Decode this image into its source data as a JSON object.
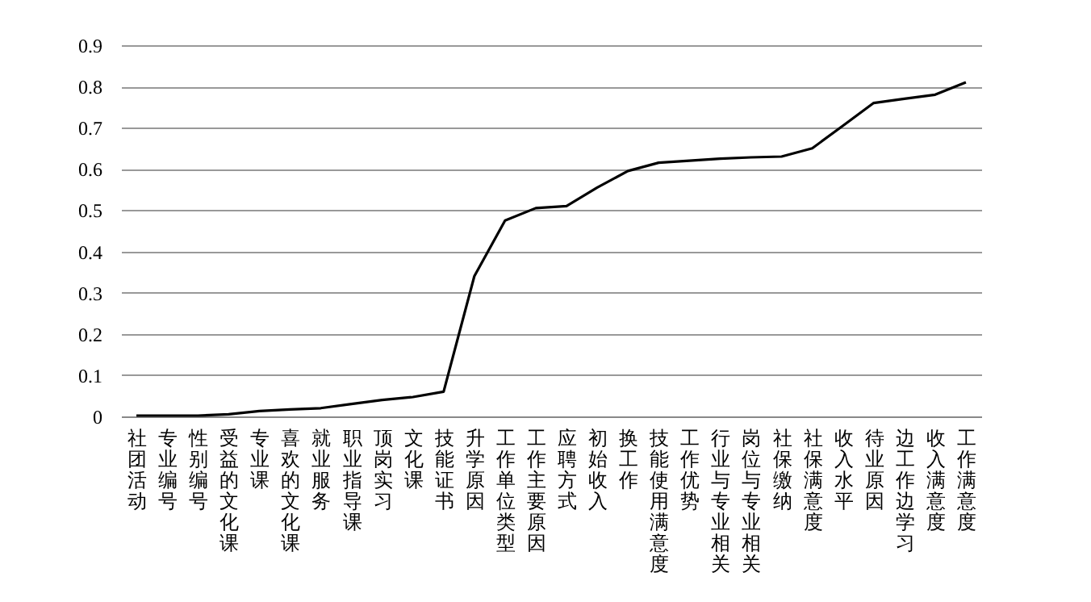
{
  "chart_data": {
    "type": "line",
    "categories": [
      "社团活动",
      "专业编号",
      "性别编号",
      "受益的文化课",
      "专业课",
      "喜欢的文化课",
      "就业服务",
      "职业指导课",
      "顶岗实习",
      "文化课",
      "技能证书",
      "升学原因",
      "工作单位类型",
      "工作主要原因",
      "应聘方式",
      "初始收入",
      "换工作",
      "技能使用满意度",
      "工作优势",
      "行业与专业相关",
      "岗位与专业相关",
      "社保缴纳",
      "社保满意度",
      "收入水平",
      "待业原因",
      "边工作边学习",
      "收入满意度",
      "工作满意度"
    ],
    "series": [
      {
        "color": "#000000",
        "values": [
          0.002,
          0.002,
          0.002,
          0.005,
          0.013,
          0.017,
          0.02,
          0.03,
          0.04,
          0.047,
          0.06,
          0.34,
          0.475,
          0.505,
          0.51,
          0.555,
          0.595,
          0.615,
          0.62,
          0.625,
          0.628,
          0.63,
          0.65,
          0.705,
          0.76,
          0.77,
          0.78,
          0.81
        ]
      }
    ],
    "ylim": [
      0,
      0.9
    ],
    "yticks": [
      0,
      0.1,
      0.2,
      0.3,
      0.4,
      0.5,
      0.6,
      0.7,
      0.8,
      0.9
    ],
    "grid": "y",
    "marker": "none",
    "line_style": "solid"
  }
}
